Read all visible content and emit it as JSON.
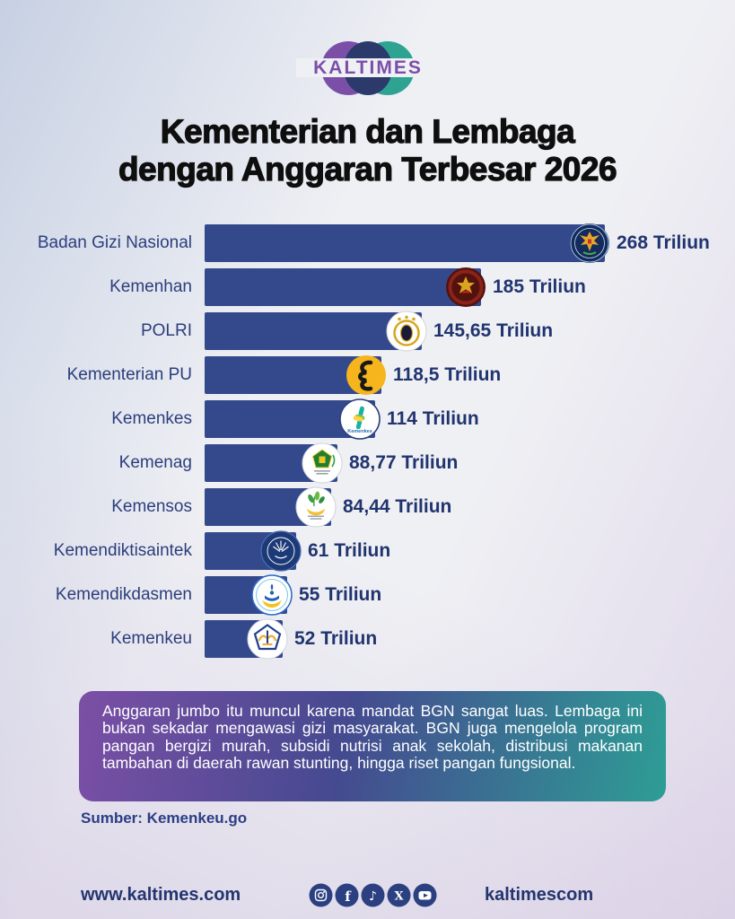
{
  "brand": {
    "name": "KALTIMES",
    "sphere_colors": {
      "left": "#7b4fa8",
      "center": "#2b3a6b",
      "right": "#2fa392"
    }
  },
  "title": {
    "line1": "Kementerian dan Lembaga",
    "line2": "dengan Anggaran Terbesar 2026"
  },
  "chart_data": {
    "type": "bar",
    "orientation": "horizontal",
    "title": "Kementerian dan Lembaga dengan Anggaran Terbesar 2026",
    "unit": "Triliun",
    "xlim": [
      0,
      268
    ],
    "grid": false,
    "legend": "none",
    "bar_color": "#34498c",
    "label_color": "#2b3e7c",
    "value_color": "#20346f",
    "categories": [
      "Badan Gizi Nasional",
      "Kemenhan",
      "POLRI",
      "Kementerian PU",
      "Kemenkes",
      "Kemenag",
      "Kemensos",
      "Kemendiktisaintek",
      "Kemendikdasmen",
      "Kemenkeu"
    ],
    "values": [
      268,
      185,
      145.65,
      118.5,
      114,
      88.77,
      84.44,
      61,
      55,
      52
    ],
    "value_labels": [
      "268 Triliun",
      "185 Triliun",
      "145,65 Triliun",
      "118,5 Triliun",
      "114 Triliun",
      "88,77 Triliun",
      "84,44 Triliun",
      "61 Triliun",
      "55 Triliun",
      "52 Triliun"
    ],
    "logos": [
      {
        "icon": "badan-gizi-nasional-logo",
        "bg": "#142b5e"
      },
      {
        "icon": "kemenhan-logo",
        "bg": "#53120d"
      },
      {
        "icon": "polri-logo",
        "bg": "#ffffff"
      },
      {
        "icon": "kementerian-pu-logo",
        "bg": "#f6b51d"
      },
      {
        "icon": "kemenkes-logo",
        "bg": "#ffffff",
        "caption": "Kemenkes"
      },
      {
        "icon": "kemenag-logo",
        "bg": "#ffffff"
      },
      {
        "icon": "kemensos-logo",
        "bg": "#ffffff"
      },
      {
        "icon": "kemendiktisaintek-logo",
        "bg": "#1d3a78"
      },
      {
        "icon": "kemendikdasmen-logo",
        "bg": "#ffffff"
      },
      {
        "icon": "kemenkeu-logo",
        "bg": "#ffffff"
      }
    ]
  },
  "callout": {
    "text": "Anggaran jumbo itu muncul karena mandat BGN sangat luas. Lembaga ini bukan sekadar mengawasi gizi masyarakat. BGN juga mengelola program pangan bergizi murah, subsidi nutrisi anak sekolah, distribusi makanan tambahan di daerah rawan stunting, hingga riset pangan fungsional.",
    "gradient": [
      "#7b4fa5",
      "#2e9d95"
    ]
  },
  "source": {
    "label": "Sumber: Kemenkeu.go"
  },
  "footer": {
    "website": "www.kaltimes.com",
    "handle": "kaltimescom",
    "social_icons": [
      "instagram-icon",
      "facebook-icon",
      "tiktok-icon",
      "x-icon",
      "youtube-icon"
    ],
    "icon_color": "#2b4080"
  }
}
